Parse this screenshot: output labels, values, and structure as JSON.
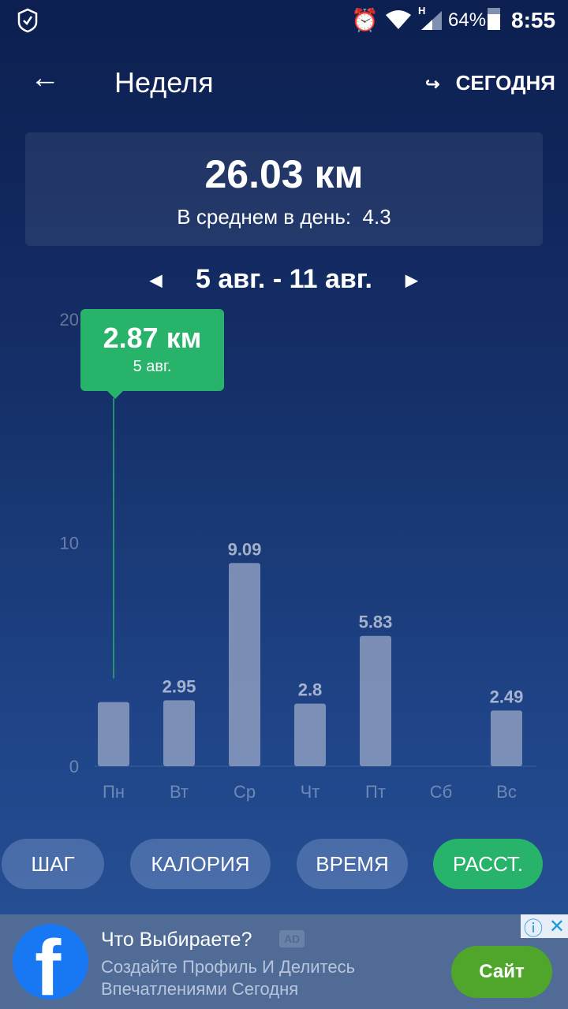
{
  "status": {
    "battery": "64%",
    "time": "8:55",
    "network": "H"
  },
  "header": {
    "title": "Неделя",
    "today_label": "СЕГОДНЯ"
  },
  "summary": {
    "total": "26.03 км",
    "avg_label": "В среднем в день:",
    "avg_value": "4.3"
  },
  "range": {
    "label": "5 авг. - 11 авг."
  },
  "tooltip": {
    "value": "2.87 км",
    "date": "5 авг."
  },
  "tabs": [
    {
      "label": "ШАГ"
    },
    {
      "label": "КАЛОРИЯ"
    },
    {
      "label": "ВРЕМЯ"
    },
    {
      "label": "РАССТ.",
      "active": true
    }
  ],
  "colors": {
    "accent": "#27b36a",
    "bar": "#8c9cc0"
  },
  "chart_data": {
    "type": "bar",
    "categories": [
      "Пн",
      "Вт",
      "Ср",
      "Чт",
      "Пт",
      "Сб",
      "Вс"
    ],
    "values": [
      2.87,
      2.95,
      9.09,
      2.8,
      5.83,
      0,
      2.49
    ],
    "data_labels": [
      "",
      "2.95",
      "9.09",
      "2.8",
      "5.83",
      "",
      "2.49"
    ],
    "yticks": [
      "0",
      "10",
      "20"
    ],
    "ylim": [
      0,
      20
    ],
    "selected_index": 0
  },
  "ad": {
    "title": "Что Выбираете?",
    "badge": "AD",
    "text1": "Создайте Профиль И Делитесь",
    "text2": "Впечатлениями Сегодня",
    "cta": "Сайт"
  }
}
